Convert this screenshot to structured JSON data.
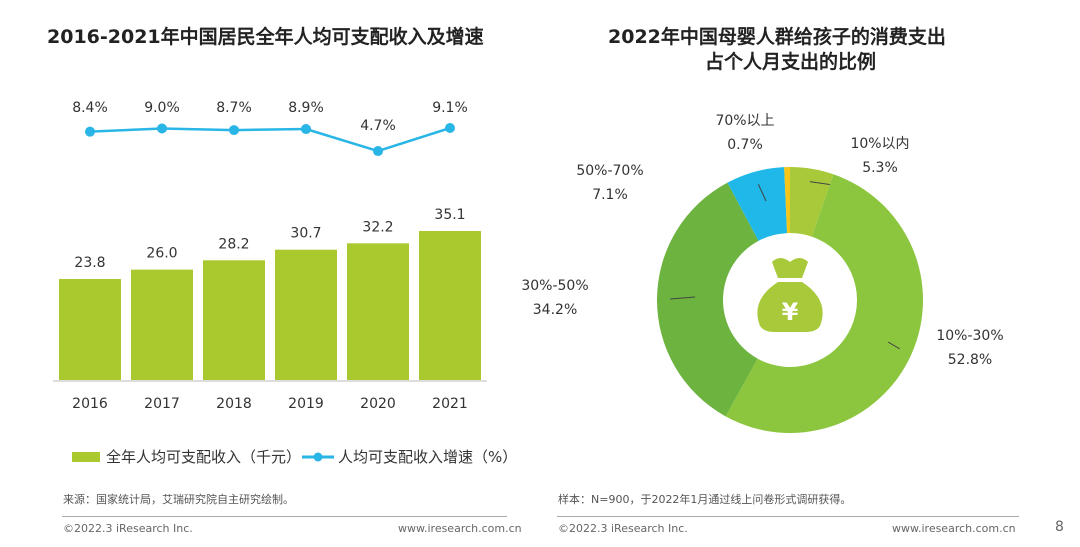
{
  "left_title": "2016-2021年中国居民全年人均可支配收入及增速",
  "right_title_1": "2022年中国母婴人群给孩子的消费支出",
  "right_title_2": "占个人月支出的比例",
  "left_source": "来源：国家统计局，艾瑞研究院自主研究绘制。",
  "right_source": "样本：N=900，于2022年1月通过线上问卷形式调研获得。",
  "copyright": "©2022.3 iResearch Inc.",
  "website": "www.iresearch.com.cn",
  "page_number": "8",
  "center_icon": "money-bag-yen-icon",
  "chart_data": [
    {
      "type": "bar+line",
      "categories": [
        "2016",
        "2017",
        "2018",
        "2019",
        "2020",
        "2021"
      ],
      "series": [
        {
          "name": "全年人均可支配收入（千元）",
          "type": "bar",
          "values": [
            23.8,
            26.0,
            28.2,
            30.7,
            32.2,
            35.1
          ],
          "labels": [
            "23.8",
            "26.0",
            "28.2",
            "30.7",
            "32.2",
            "35.1"
          ],
          "color": "#a9c92f"
        },
        {
          "name": "人均可支配收入增速（%）",
          "type": "line",
          "values": [
            8.4,
            9.0,
            8.7,
            8.9,
            4.7,
            9.1
          ],
          "labels": [
            "8.4%",
            "9.0%",
            "8.7%",
            "8.9%",
            "4.7%",
            "9.1%"
          ],
          "color": "#29b6e6"
        }
      ],
      "legend": "bottom"
    },
    {
      "type": "pie",
      "donut": true,
      "slices": [
        {
          "label": "10%以内",
          "value": 5.3,
          "value_label": "5.3%",
          "color": "#a8c93a"
        },
        {
          "label": "10%-30%",
          "value": 52.8,
          "value_label": "52.8%",
          "color": "#8cc63f"
        },
        {
          "label": "30%-50%",
          "value": 34.2,
          "value_label": "34.2%",
          "color": "#6cb33f"
        },
        {
          "label": "50%-70%",
          "value": 7.1,
          "value_label": "7.1%",
          "color": "#1fb8e8"
        },
        {
          "label": "70%以上",
          "value": 0.7,
          "value_label": "0.7%",
          "color": "#f5c518"
        }
      ]
    }
  ]
}
